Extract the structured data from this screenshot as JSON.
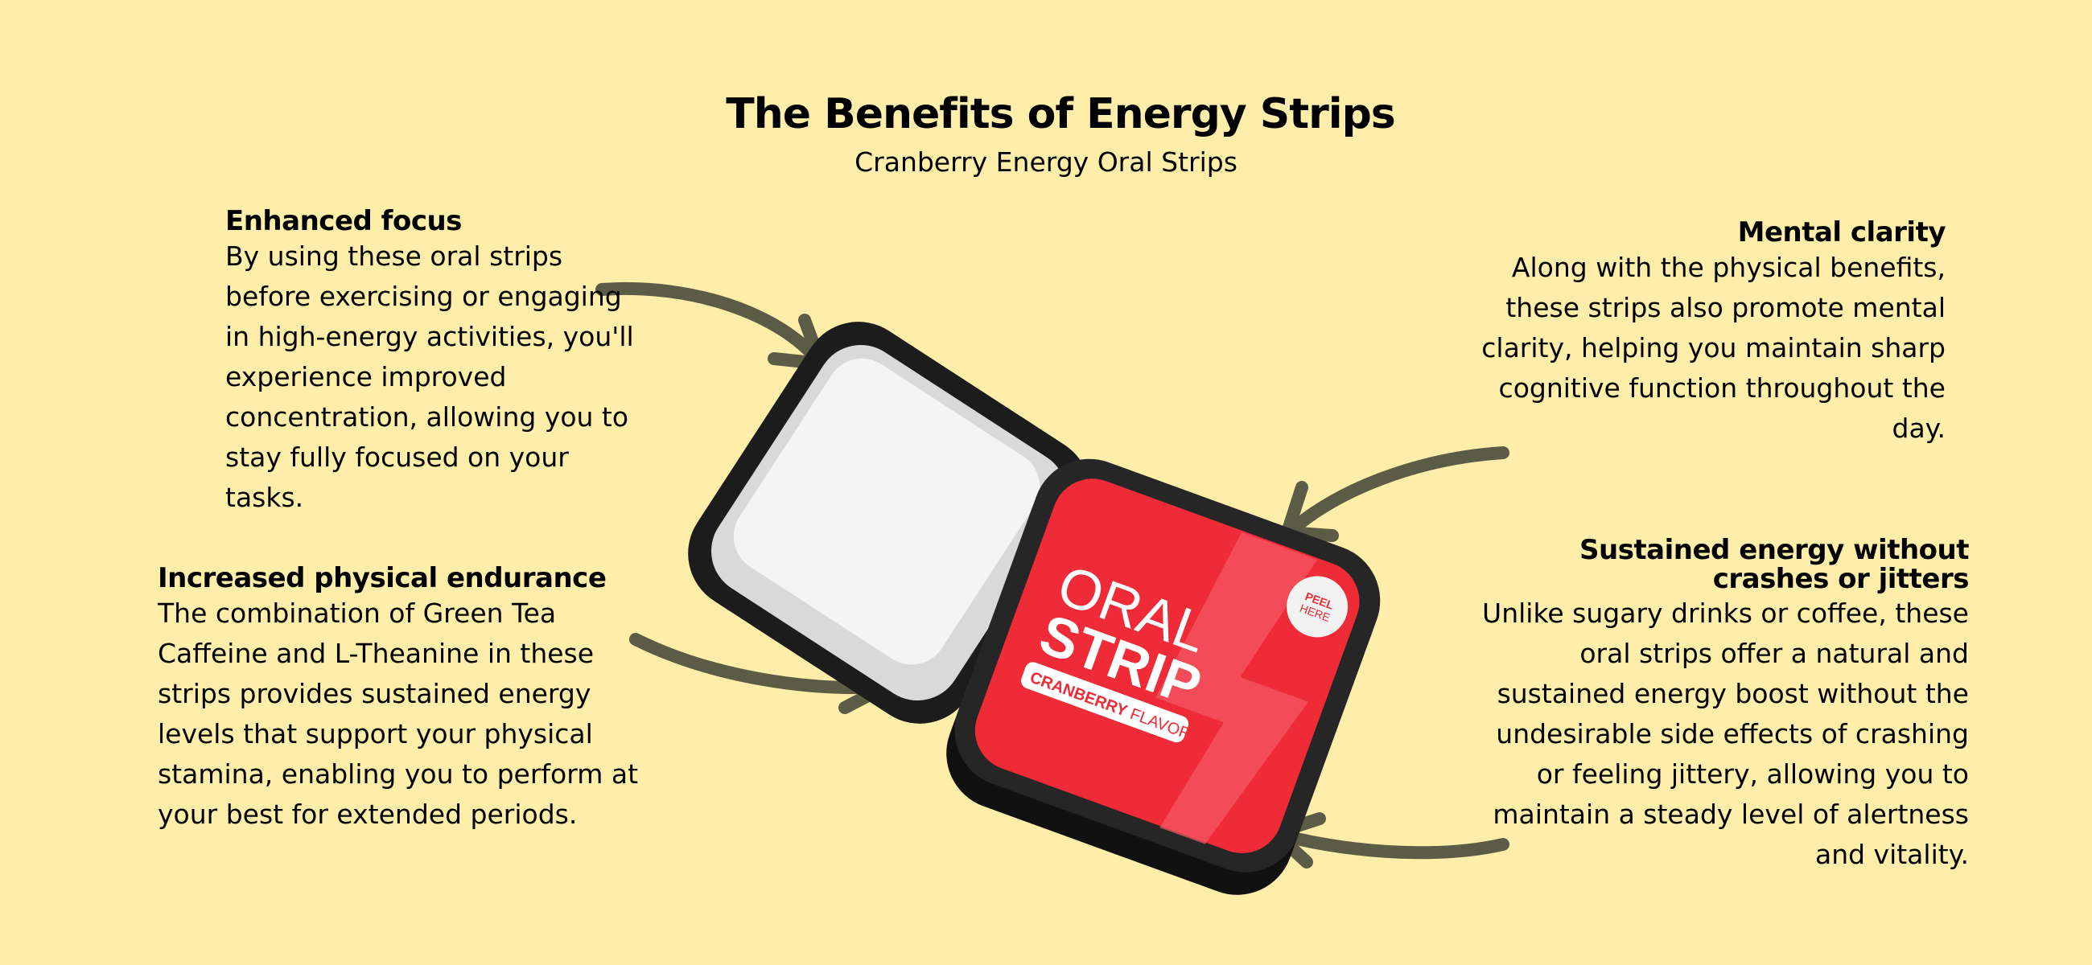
{
  "header": {
    "title": "The Benefits of Energy Strips",
    "subtitle": "Cranberry Energy Oral Strips"
  },
  "benefits": [
    {
      "title": "Enhanced focus",
      "body": "By using these oral strips before exercising or engaging in high-energy activities, you'll experience improved concentration, allowing you to stay fully focused on your tasks."
    },
    {
      "title": "Increased physical endurance",
      "body": "The combination of Green Tea Caffeine and L-Theanine in these strips provides sustained energy levels that support your physical stamina, enabling you to perform at your best for extended periods."
    },
    {
      "title": "Mental clarity",
      "body": "Along with the physical benefits, these strips also promote mental clarity, helping you maintain sharp cognitive function throughout the day."
    },
    {
      "title": "Sustained energy without crashes or jitters",
      "body": "Unlike sugary drinks or coffee, these oral strips offer a natural and sustained energy boost without the undesirable side effects of crashing or feeling jittery, allowing you to maintain a steady level of alertness and vitality."
    }
  ],
  "product": {
    "brand_line1": "ORAL",
    "brand_line2": "STRIP",
    "flavor_bold": "CRANBERRY",
    "flavor_light": "FLAVOR",
    "peel_line1": "PEEL",
    "peel_line2": "HERE"
  },
  "colors": {
    "background": "#FFEEA9",
    "arrow": "#5B5B46",
    "pouch": "#EE2B36",
    "tin": "#1C1C1C"
  }
}
